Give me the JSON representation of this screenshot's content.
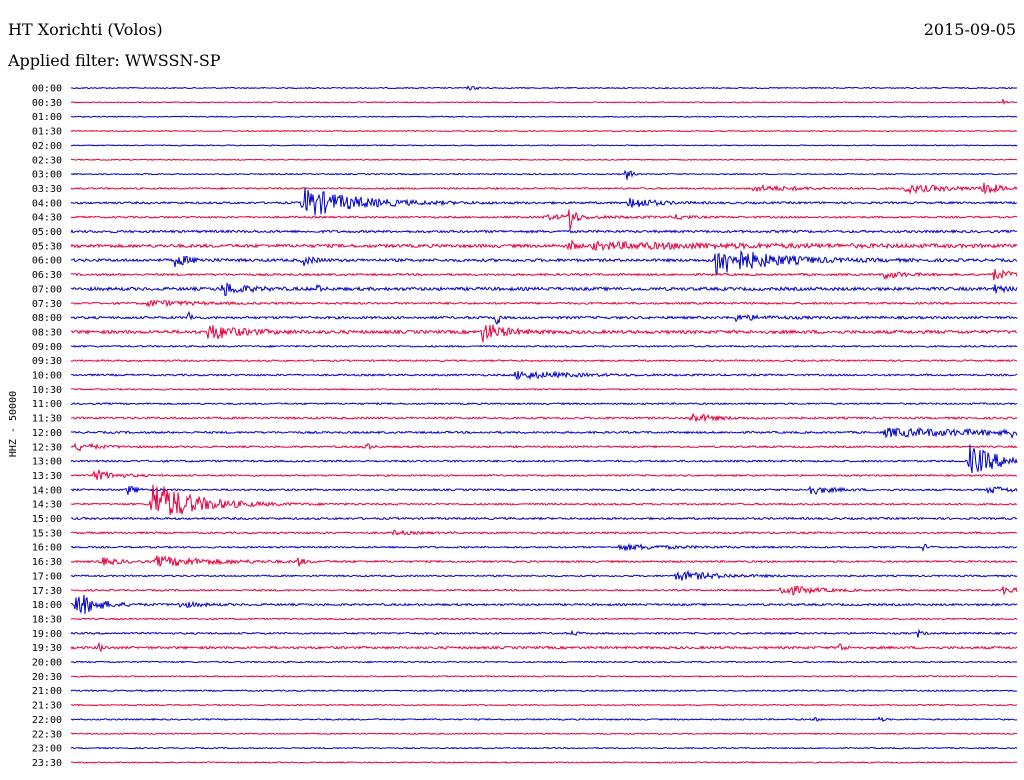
{
  "header": {
    "station": "HT Xorichti (Volos)",
    "date": "2015-09-05",
    "filter": "Applied filter: WWSSN-SP"
  },
  "chart_data": {
    "type": "line",
    "title": "HT Xorichti (Volos)",
    "subtitle": "Applied filter: WWSSN-SP",
    "ylabel": "HHZ - 50000",
    "xlabel": "",
    "grid": false,
    "colors": {
      "even": "#0000cc",
      "odd": "#e8003c"
    },
    "rows": [
      "00:00",
      "00:30",
      "01:00",
      "01:30",
      "02:00",
      "02:30",
      "03:00",
      "03:30",
      "04:00",
      "04:30",
      "05:00",
      "05:30",
      "06:00",
      "06:30",
      "07:00",
      "07:30",
      "08:00",
      "08:30",
      "09:00",
      "09:30",
      "10:00",
      "10:30",
      "11:00",
      "11:30",
      "12:00",
      "12:30",
      "13:00",
      "13:30",
      "14:00",
      "14:30",
      "15:00",
      "15:30",
      "16:00",
      "16:30",
      "17:00",
      "17:30",
      "18:00",
      "18:30",
      "19:00",
      "19:30",
      "20:00",
      "20:30",
      "21:00",
      "21:30",
      "22:00",
      "22:30",
      "23:00",
      "23:30"
    ],
    "noise": [
      0.6,
      0.5,
      0.5,
      0.5,
      0.5,
      0.5,
      0.6,
      0.8,
      1.0,
      0.9,
      1.2,
      1.6,
      1.4,
      1.0,
      1.6,
      1.0,
      1.2,
      1.6,
      0.8,
      0.8,
      0.9,
      0.7,
      0.8,
      1.0,
      1.0,
      0.9,
      0.9,
      0.8,
      0.9,
      0.9,
      1.0,
      0.9,
      0.8,
      0.9,
      0.8,
      0.8,
      1.0,
      0.7,
      0.9,
      1.2,
      0.7,
      0.6,
      0.7,
      0.6,
      0.7,
      0.6,
      0.6,
      0.6
    ],
    "events": [
      {
        "row": 0,
        "x": 0.42,
        "amp": 2,
        "dur": 0.01
      },
      {
        "row": 1,
        "x": 0.985,
        "amp": 3,
        "dur": 0.005
      },
      {
        "row": 6,
        "x": 0.587,
        "amp": 14,
        "dur": 0.003
      },
      {
        "row": 7,
        "x": 0.72,
        "amp": 3,
        "dur": 0.05
      },
      {
        "row": 7,
        "x": 0.88,
        "amp": 4,
        "dur": 0.05
      },
      {
        "row": 7,
        "x": 0.965,
        "amp": 9,
        "dur": 0.01
      },
      {
        "row": 8,
        "x": 0.245,
        "amp": 16,
        "dur": 0.05
      },
      {
        "row": 8,
        "x": 0.59,
        "amp": 7,
        "dur": 0.02
      },
      {
        "row": 9,
        "x": 0.5,
        "amp": 2,
        "dur": 0.06
      },
      {
        "row": 9,
        "x": 0.527,
        "amp": 22,
        "dur": 0.004
      },
      {
        "row": 9,
        "x": 0.64,
        "amp": 3,
        "dur": 0.01
      },
      {
        "row": 11,
        "x": 0.527,
        "amp": 9,
        "dur": 0.004
      },
      {
        "row": 11,
        "x": 0.55,
        "amp": 3,
        "dur": 0.18
      },
      {
        "row": 12,
        "x": 0.11,
        "amp": 6,
        "dur": 0.015
      },
      {
        "row": 12,
        "x": 0.245,
        "amp": 5,
        "dur": 0.01
      },
      {
        "row": 12,
        "x": 0.68,
        "amp": 16,
        "dur": 0.05
      },
      {
        "row": 13,
        "x": 0.86,
        "amp": 4,
        "dur": 0.02
      },
      {
        "row": 13,
        "x": 0.975,
        "amp": 6,
        "dur": 0.015
      },
      {
        "row": 14,
        "x": 0.16,
        "amp": 7,
        "dur": 0.02
      },
      {
        "row": 14,
        "x": 0.26,
        "amp": 8,
        "dur": 0.002
      },
      {
        "row": 14,
        "x": 0.975,
        "amp": 4,
        "dur": 0.01
      },
      {
        "row": 15,
        "x": 0.08,
        "amp": 3,
        "dur": 0.04
      },
      {
        "row": 16,
        "x": 0.125,
        "amp": 12,
        "dur": 0.002
      },
      {
        "row": 16,
        "x": 0.45,
        "amp": 14,
        "dur": 0.002
      },
      {
        "row": 16,
        "x": 0.7,
        "amp": 3,
        "dur": 0.03
      },
      {
        "row": 17,
        "x": 0.145,
        "amp": 8,
        "dur": 0.03
      },
      {
        "row": 17,
        "x": 0.435,
        "amp": 10,
        "dur": 0.02
      },
      {
        "row": 20,
        "x": 0.47,
        "amp": 4,
        "dur": 0.05
      },
      {
        "row": 23,
        "x": 0.655,
        "amp": 5,
        "dur": 0.02
      },
      {
        "row": 24,
        "x": 0.86,
        "amp": 4,
        "dur": 0.15
      },
      {
        "row": 24,
        "x": 0.995,
        "amp": 6,
        "dur": 0.005
      },
      {
        "row": 25,
        "x": 0.005,
        "amp": 4,
        "dur": 0.02
      },
      {
        "row": 25,
        "x": 0.31,
        "amp": 6,
        "dur": 0.005
      },
      {
        "row": 26,
        "x": 0.95,
        "amp": 16,
        "dur": 0.03
      },
      {
        "row": 27,
        "x": 0.025,
        "amp": 6,
        "dur": 0.02
      },
      {
        "row": 28,
        "x": 0.06,
        "amp": 5,
        "dur": 0.01
      },
      {
        "row": 28,
        "x": 0.78,
        "amp": 5,
        "dur": 0.02
      },
      {
        "row": 28,
        "x": 0.97,
        "amp": 4,
        "dur": 0.02
      },
      {
        "row": 29,
        "x": 0.085,
        "amp": 24,
        "dur": 0.04
      },
      {
        "row": 31,
        "x": 0.34,
        "amp": 2,
        "dur": 0.02
      },
      {
        "row": 32,
        "x": 0.58,
        "amp": 3,
        "dur": 0.05
      },
      {
        "row": 32,
        "x": 0.9,
        "amp": 4,
        "dur": 0.005
      },
      {
        "row": 33,
        "x": 0.03,
        "amp": 4,
        "dur": 0.02
      },
      {
        "row": 33,
        "x": 0.09,
        "amp": 5,
        "dur": 0.06
      },
      {
        "row": 33,
        "x": 0.24,
        "amp": 5,
        "dur": 0.005
      },
      {
        "row": 34,
        "x": 0.64,
        "amp": 5,
        "dur": 0.04
      },
      {
        "row": 35,
        "x": 0.75,
        "amp": 6,
        "dur": 0.03
      },
      {
        "row": 35,
        "x": 0.985,
        "amp": 4,
        "dur": 0.015
      },
      {
        "row": 36,
        "x": 0.005,
        "amp": 14,
        "dur": 0.02
      },
      {
        "row": 36,
        "x": 0.115,
        "amp": 3,
        "dur": 0.02
      },
      {
        "row": 38,
        "x": 0.53,
        "amp": 3,
        "dur": 0.004
      },
      {
        "row": 38,
        "x": 0.895,
        "amp": 4,
        "dur": 0.004
      },
      {
        "row": 39,
        "x": 0.03,
        "amp": 6,
        "dur": 0.003
      },
      {
        "row": 39,
        "x": 0.812,
        "amp": 9,
        "dur": 0.003
      },
      {
        "row": 44,
        "x": 0.785,
        "amp": 3,
        "dur": 0.003
      },
      {
        "row": 44,
        "x": 0.855,
        "amp": 4,
        "dur": 0.003
      }
    ]
  }
}
